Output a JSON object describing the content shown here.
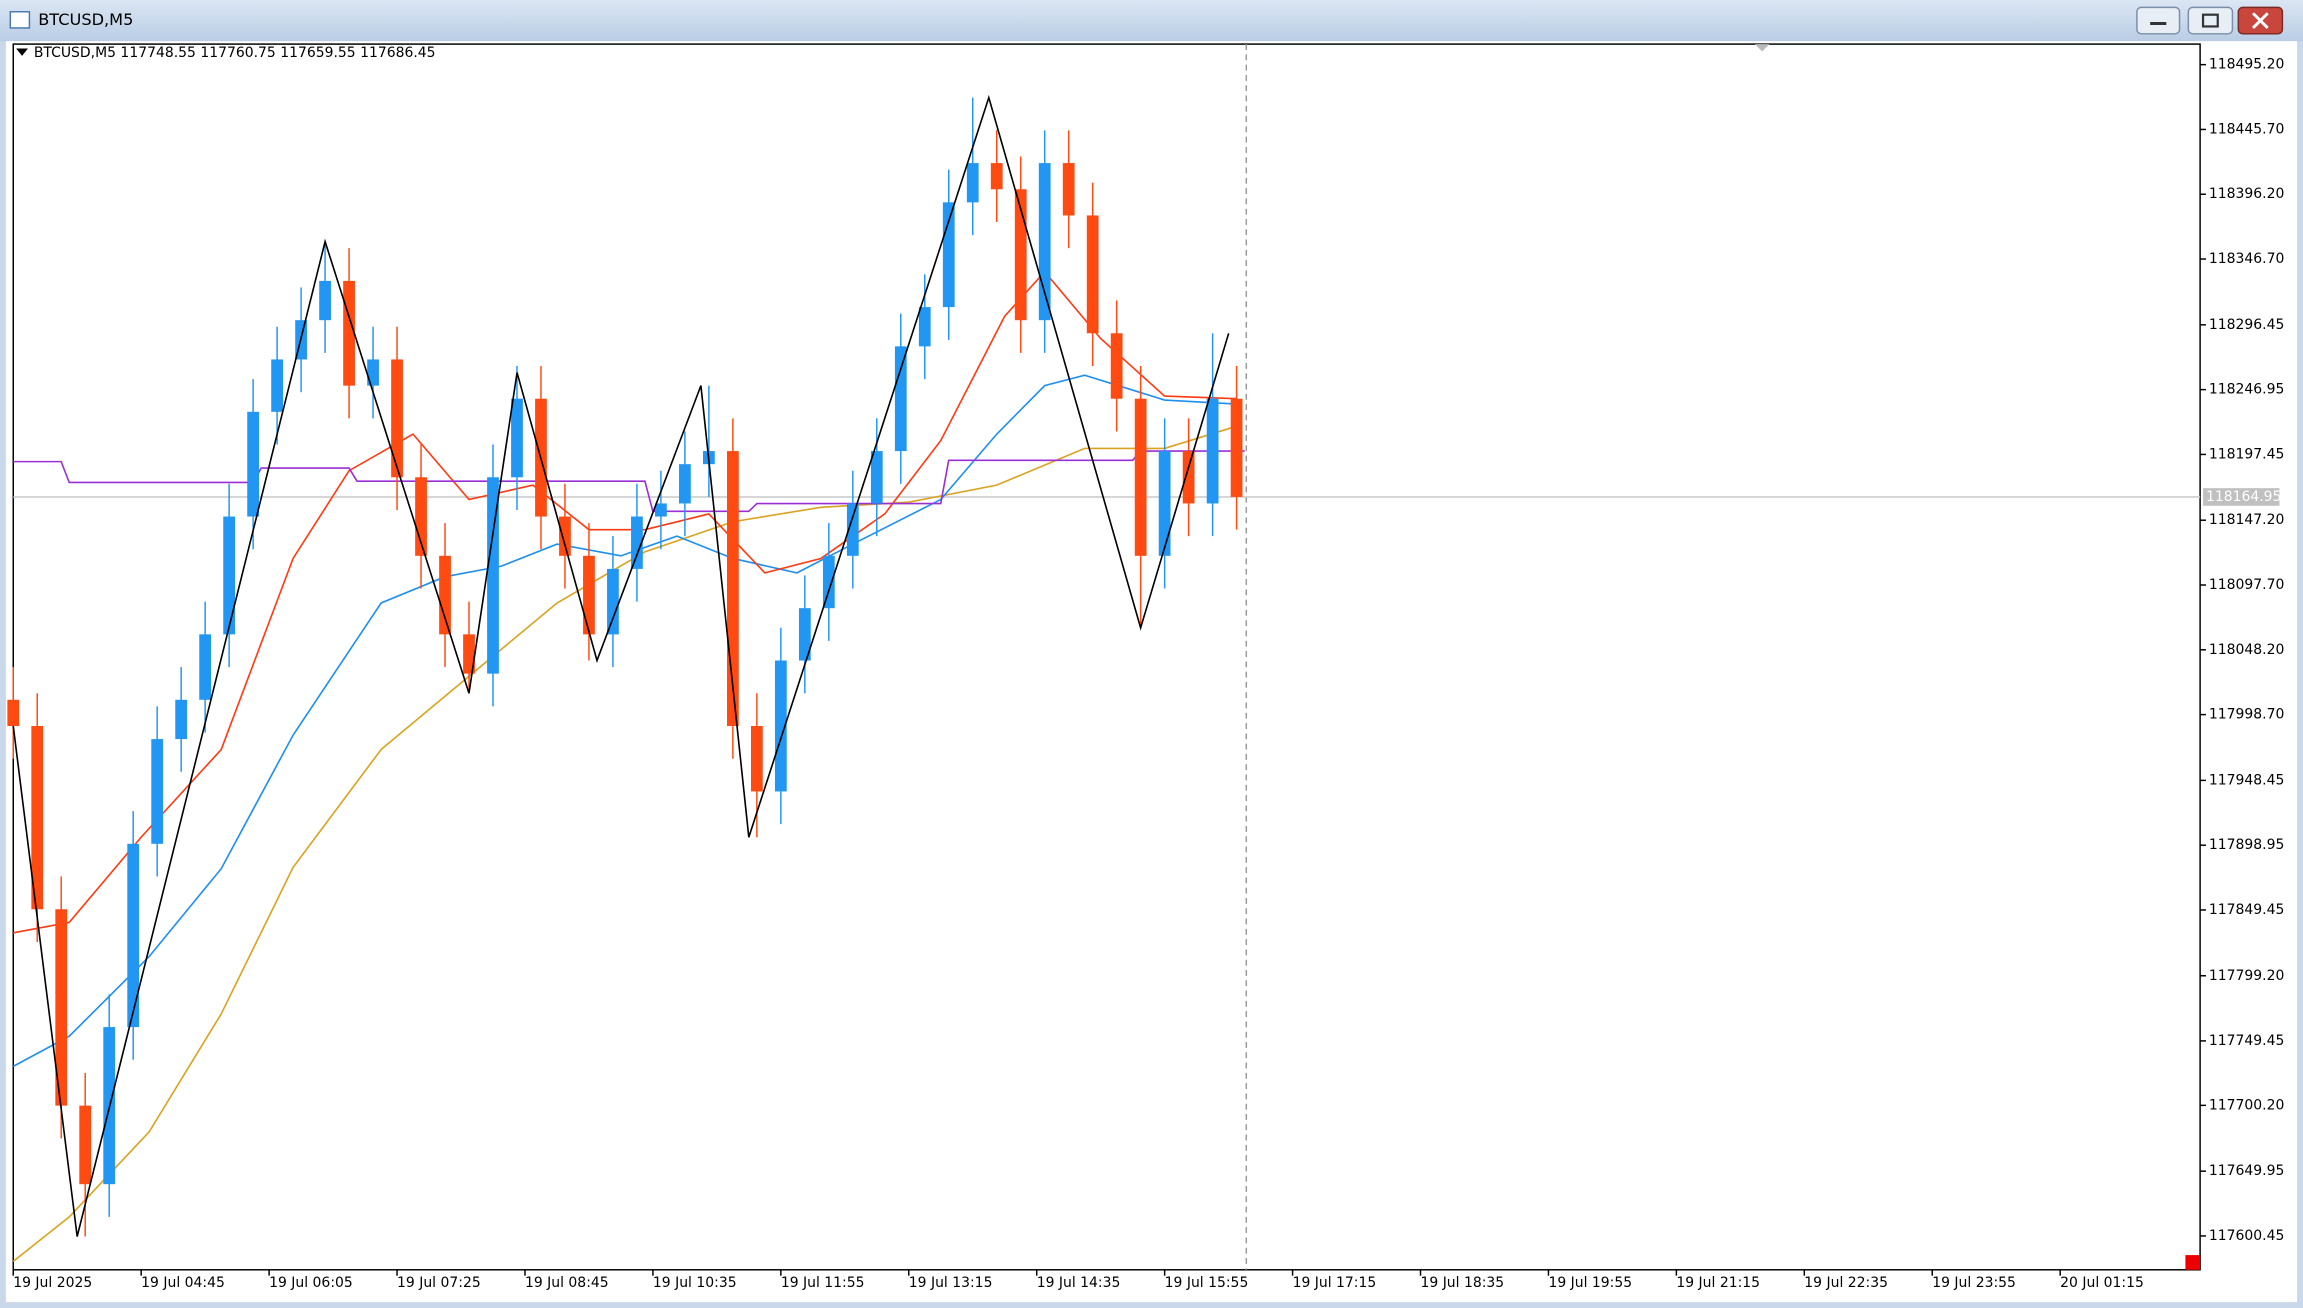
{
  "window_title": "BTCUSD,M5",
  "chart_data": {
    "type": "candlestick",
    "title": "BTCUSD,M5  117748.55 117760.75 117659.55 117686.45",
    "up_color": "#2196f3",
    "down_color": "#ff4a12",
    "xlim": [
      0,
      273.5
    ],
    "xticks": [
      {
        "value": 0,
        "label": "19 Jul 2025"
      },
      {
        "value": 16,
        "label": "19 Jul 04:45"
      },
      {
        "value": 32,
        "label": "19 Jul 06:05"
      },
      {
        "value": 48,
        "label": "19 Jul 07:25"
      },
      {
        "value": 64,
        "label": "19 Jul 08:45"
      },
      {
        "value": 80,
        "label": "19 Jul 10:35"
      },
      {
        "value": 96,
        "label": "19 Jul 11:55"
      },
      {
        "value": 112,
        "label": "19 Jul 13:15"
      },
      {
        "value": 128,
        "label": "19 Jul 14:35"
      },
      {
        "value": 144,
        "label": "19 Jul 15:55"
      },
      {
        "value": 160,
        "label": "19 Jul 17:15"
      },
      {
        "value": 176,
        "label": "19 Jul 18:35"
      },
      {
        "value": 192,
        "label": "19 Jul 19:55"
      },
      {
        "value": 208,
        "label": "19 Jul 21:15"
      },
      {
        "value": 224,
        "label": "19 Jul 22:35"
      },
      {
        "value": 240,
        "label": "19 Jul 23:55"
      },
      {
        "value": 256,
        "label": "20 Jul 01:15"
      }
    ],
    "ylim": [
      117574.6,
      118510.9
    ],
    "yticks": [
      {
        "value": 118495.2,
        "label": "118495.20"
      },
      {
        "value": 118445.7,
        "label": "118445.70"
      },
      {
        "value": 118396.2,
        "label": "118396.20"
      },
      {
        "value": 118346.7,
        "label": "118346.70"
      },
      118296.45,
      118246.95,
      118197.45,
      {
        "value": 118147.2,
        "label": "118147.20"
      },
      {
        "value": 118097.7,
        "label": "118097.70"
      },
      {
        "value": 118048.2,
        "label": "118048.20"
      },
      {
        "value": 117998.7,
        "label": "117998.70"
      },
      117948.45,
      117898.95,
      117849.45,
      {
        "value": 117799.2,
        "label": "117799.20"
      },
      117749.45,
      {
        "value": 117700.2,
        "label": "117700.20"
      },
      117649.95,
      117600.45
    ],
    "last_price": 118164.95,
    "x": [
      0,
      3,
      6,
      9,
      12,
      15,
      18,
      21,
      24,
      27,
      30,
      33,
      36,
      39,
      42,
      45,
      48,
      51,
      54,
      57,
      60,
      63,
      66,
      69,
      72,
      75,
      78,
      81,
      84,
      87,
      90,
      93,
      96,
      99,
      102,
      105,
      108,
      111,
      114,
      117,
      120,
      123,
      126,
      129,
      132,
      135,
      138,
      141,
      144,
      147,
      150,
      153
    ],
    "open": [
      118010,
      117990,
      117850,
      117700,
      117640,
      117760,
      117900,
      117980,
      118010,
      118060,
      118150,
      118230,
      118270,
      118300,
      118330,
      118250,
      118270,
      118180,
      118120,
      118060,
      118030,
      118180,
      118240,
      118150,
      118120,
      118060,
      118110,
      118150,
      118160,
      118190,
      118200,
      117990,
      117940,
      118040,
      118080,
      118120,
      118160,
      118200,
      118280,
      118310,
      118390,
      118420,
      118400,
      118300,
      118420,
      118380,
      118290,
      118240,
      118120,
      118200,
      118160,
      118240
    ],
    "high": [
      118035,
      118015,
      117875,
      117725,
      117785,
      117925,
      118005,
      118035,
      118085,
      118175,
      118255,
      118295,
      118325,
      118360,
      118355,
      118295,
      118295,
      118205,
      118145,
      118085,
      118205,
      118265,
      118265,
      118175,
      118145,
      118135,
      118175,
      118185,
      118215,
      118250,
      118225,
      118015,
      118065,
      118105,
      118145,
      118185,
      118225,
      118305,
      118335,
      118415,
      118470,
      118445,
      118425,
      118445,
      118445,
      118405,
      118315,
      118265,
      118225,
      118225,
      118290,
      118265
    ],
    "low": [
      117965,
      117825,
      117675,
      117600,
      117615,
      117735,
      117875,
      117955,
      117985,
      118035,
      118125,
      118205,
      118245,
      118275,
      118225,
      118225,
      118155,
      118095,
      118035,
      118015,
      118005,
      118155,
      118125,
      118095,
      118040,
      118035,
      118085,
      118125,
      118135,
      118165,
      117965,
      117905,
      117915,
      118015,
      118055,
      118095,
      118135,
      118175,
      118255,
      118285,
      118365,
      118375,
      118275,
      118275,
      118355,
      118265,
      118215,
      118065,
      118095,
      118135,
      118135,
      118140
    ],
    "close": [
      117990,
      117850,
      117700,
      117640,
      117760,
      117900,
      117980,
      118010,
      118060,
      118150,
      118230,
      118270,
      118300,
      118330,
      118250,
      118270,
      118180,
      118120,
      118060,
      118030,
      118180,
      118240,
      118150,
      118120,
      118060,
      118110,
      118150,
      118160,
      118190,
      118200,
      117990,
      117940,
      118040,
      118080,
      118120,
      118160,
      118200,
      118280,
      118310,
      118390,
      118420,
      118400,
      118300,
      118420,
      118380,
      118290,
      118240,
      118120,
      118200,
      118160,
      118240,
      118165
    ],
    "lines": [
      {
        "color": "#daa21e",
        "x": [
          0,
          7,
          17,
          26,
          35,
          46,
          57,
          68,
          79,
          90,
          101,
          112,
          123,
          134,
          144,
          153
        ],
        "values": [
          117581,
          117615,
          117680,
          117770,
          117882,
          117972,
          118028,
          118084,
          118123,
          118146,
          118157,
          118161,
          118174,
          118202,
          118202,
          118219
        ]
      },
      {
        "color": "#1e8ff0",
        "x": [
          0,
          7,
          17,
          26,
          35,
          46,
          54,
          61,
          68,
          76,
          83,
          90,
          98,
          105,
          116,
          123,
          129,
          134,
          144,
          153
        ],
        "values": [
          117730,
          117753,
          117814,
          117881,
          117983,
          118084,
          118104,
          118112,
          118129,
          118120,
          118135,
          118118,
          118107,
          118129,
          118163,
          118213,
          118250,
          118258,
          118239,
          118236
        ]
      },
      {
        "color": "#ff3a12",
        "x": [
          0,
          7,
          16,
          26,
          35,
          42,
          50,
          57,
          65,
          72,
          79,
          87,
          94,
          101,
          109,
          116,
          124,
          129,
          136,
          144,
          153
        ],
        "values": [
          117832,
          117840,
          117905,
          117972,
          118118,
          118185,
          118213,
          118163,
          118174,
          118140,
          118140,
          118152,
          118107,
          118118,
          118152,
          118208,
          118303,
          118337,
          118286,
          118242,
          118240
        ]
      },
      {
        "color": "#9b2fd6",
        "x": [
          0,
          6,
          7,
          30,
          31,
          42,
          43,
          79,
          80,
          92,
          93,
          116,
          117,
          140,
          141,
          154
        ],
        "values": [
          118192,
          118192,
          118176,
          118176,
          118187,
          118187,
          118177,
          118177,
          118154,
          118154,
          118160,
          118160,
          118193,
          118193,
          118200,
          118200
        ]
      },
      {
        "color": "#000000",
        "x": [
          0,
          8,
          39,
          57,
          63,
          73,
          86,
          92,
          122,
          141,
          152
        ],
        "values": [
          117990,
          117600,
          118360,
          118015,
          118260,
          118040,
          118250,
          117905,
          118470,
          118065,
          118290
        ]
      }
    ]
  }
}
